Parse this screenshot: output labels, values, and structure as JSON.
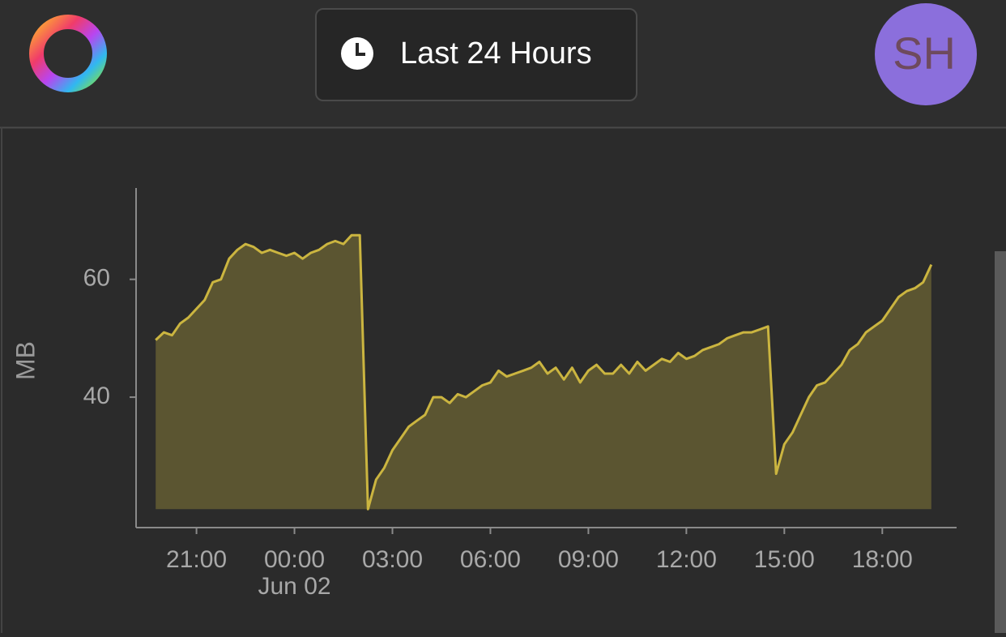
{
  "header": {
    "time_range": "Last 24 Hours",
    "avatar": "SH"
  },
  "chart_data": {
    "type": "area",
    "y_label": "MB",
    "x_sublabel": "Jun 02",
    "x": [
      -4.25,
      -4,
      -3.75,
      -3.5,
      -3.25,
      -3,
      -2.75,
      -2.5,
      -2.25,
      -2,
      -1.75,
      -1.5,
      -1.25,
      -1,
      -0.75,
      -0.5,
      -0.25,
      0,
      0.25,
      0.5,
      0.75,
      1,
      1.25,
      1.5,
      1.75,
      2,
      2.25,
      2.5,
      2.75,
      3,
      3.25,
      3.5,
      3.75,
      4,
      4.25,
      4.5,
      4.75,
      5,
      5.25,
      5.5,
      5.75,
      6,
      6.25,
      6.5,
      6.75,
      7,
      7.25,
      7.5,
      7.75,
      8,
      8.25,
      8.5,
      8.75,
      9,
      9.25,
      9.5,
      9.75,
      10,
      10.25,
      10.5,
      10.75,
      11,
      11.25,
      11.5,
      11.75,
      12,
      12.25,
      12.5,
      12.75,
      13,
      13.25,
      13.5,
      13.75,
      14,
      14.25,
      14.5,
      14.75,
      15,
      15.25,
      15.5,
      15.75,
      16,
      16.25,
      16.5,
      16.75,
      17,
      17.25,
      17.5,
      17.75,
      18,
      18.25,
      18.5,
      18.75,
      19,
      19.25,
      19.5
    ],
    "values": [
      49.7,
      51,
      50.5,
      52.5,
      53.5,
      55,
      56.5,
      59.5,
      60,
      63.5,
      65,
      66,
      65.5,
      64.5,
      65,
      64.5,
      64,
      64.5,
      63.5,
      64.5,
      65,
      66,
      66.5,
      66,
      67.5,
      67.5,
      21,
      26,
      28,
      31,
      33,
      35,
      36,
      37,
      40,
      40,
      39,
      40.5,
      40,
      41,
      42,
      42.5,
      44.5,
      43.5,
      44,
      44.5,
      45,
      46,
      44,
      45,
      43,
      45,
      42.5,
      44.5,
      45.5,
      44,
      44,
      45.5,
      44,
      46,
      44.5,
      45.5,
      46.5,
      46,
      47.5,
      46.5,
      47,
      48,
      48.5,
      49,
      50,
      50.5,
      51,
      51,
      51.5,
      52,
      27,
      32,
      34,
      37,
      40,
      42,
      42.5,
      44,
      45.5,
      48,
      49,
      51,
      52,
      53,
      55,
      57,
      58,
      58.5,
      59.5,
      62.5
    ],
    "color": "#cbb540",
    "xlim": [
      -4.85,
      20.25
    ],
    "ylim": [
      18,
      75.5
    ],
    "xticks": [
      {
        "value": -3,
        "label": "21:00"
      },
      {
        "value": 0,
        "label": "00:00"
      },
      {
        "value": 3,
        "label": "03:00"
      },
      {
        "value": 6,
        "label": "06:00"
      },
      {
        "value": 9,
        "label": "09:00"
      },
      {
        "value": 12,
        "label": "12:00"
      },
      {
        "value": 15,
        "label": "15:00"
      },
      {
        "value": 18,
        "label": "18:00"
      }
    ],
    "yticks": [
      40,
      60
    ],
    "grid": false
  }
}
